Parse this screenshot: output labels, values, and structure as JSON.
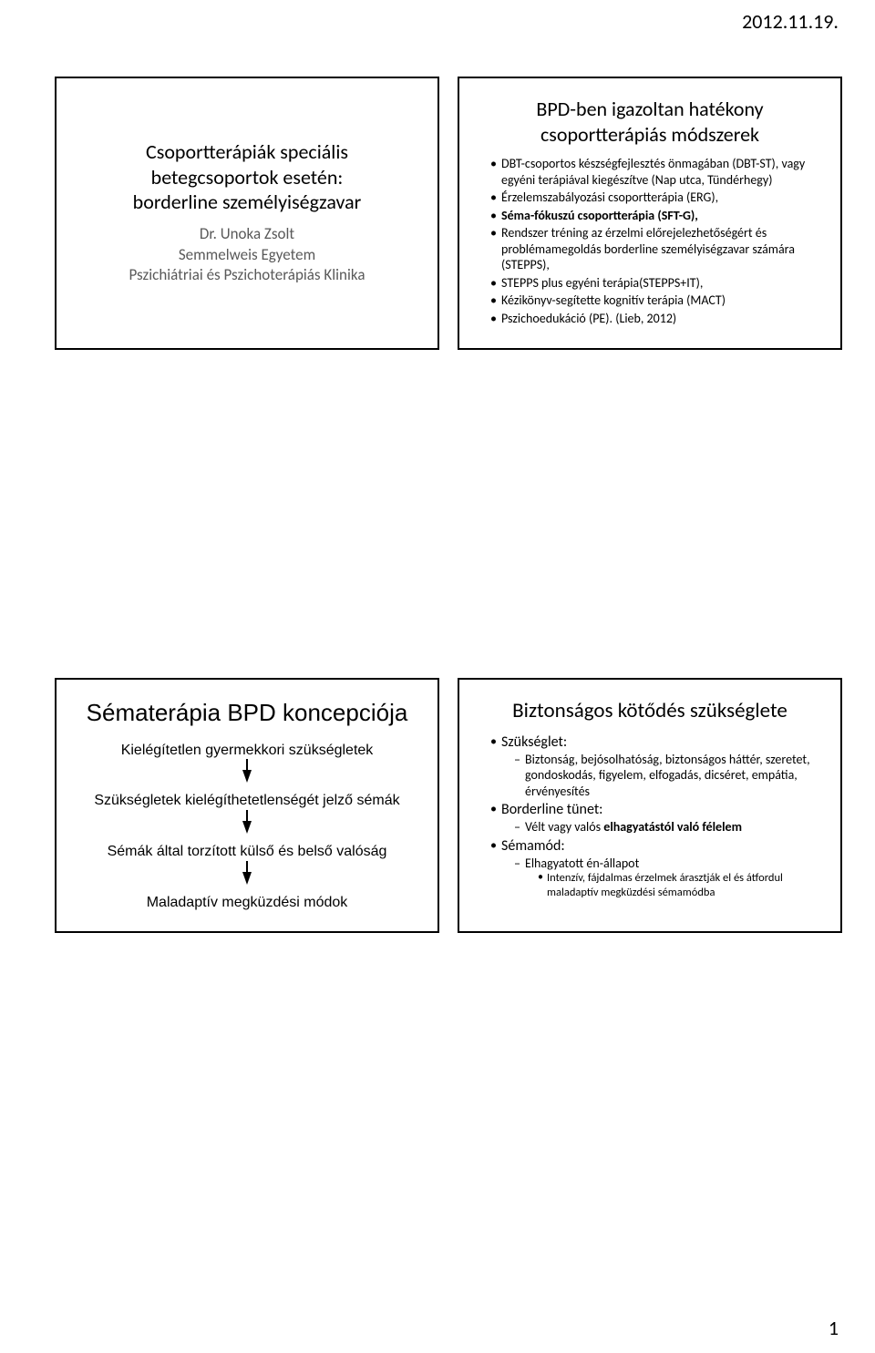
{
  "header": {
    "date": "2012.11.19."
  },
  "footer": {
    "page_number": "1"
  },
  "slide1": {
    "title_l1": "Csoportterápiák speciális",
    "title_l2": "betegcsoportok esetén:",
    "title_l3": "borderline személyiségzavar",
    "author": "Dr. Unoka Zsolt",
    "affil_l1": "Semmelweis Egyetem",
    "affil_l2": "Pszichiátriai és Pszichoterápiás Klinika"
  },
  "slide2": {
    "title_l1": "BPD-ben igazoltan hatékony",
    "title_l2": "csoportterápiás módszerek",
    "items": [
      "DBT-csoportos készségfejlesztés önmagában (DBT-ST), vagy egyéni terápiával kiegészítve (Nap utca, Tündérhegy)",
      "Érzelemszabályozási csoportterápia (ERG),",
      "<b>Séma-fókuszú csoportterápia (SFT-G),</b>",
      "Rendszer tréning az érzelmi előrejelezhetőségért és problémamegoldás borderline személyiségzavar számára (STEPPS),",
      "STEPPS plus egyéni terápia(STEPPS+IT),",
      "Kézikönyv-segítette kognitív terápia (MACT)",
      "Pszichoedukáció (PE). (Lieb, 2012)"
    ]
  },
  "slide3": {
    "title": "Sématerápia BPD koncepciója",
    "steps": [
      "Kielégítetlen gyermekkori szükségletek",
      "Szükségletek kielégíthetetlenségét jelző sémák",
      "Sémák által torzított külső és belső valóság",
      "Maladaptív megküzdési módok"
    ]
  },
  "slide4": {
    "title": "Biztonságos kötődés szükséglete",
    "need_label": "Szükséglet:",
    "need_l1": "Biztonság, bejósolhatóság, biztonságos háttér, szeretet, gondoskodás, figyelem, elfogadás, dicséret, empátia, érvényesítés",
    "symptom_label": "Borderline tünet:",
    "symptom_l1_pre": "Vélt vagy valós ",
    "symptom_l1_bold": "elhagyatástól való félelem",
    "mode_label": "Sémamód:",
    "mode_l1": "Elhagyatott én-állapot",
    "mode_sub": "Intenzív, fájdalmas érzelmek árasztják el és átfordul maladaptív megküzdési sémamódba"
  }
}
